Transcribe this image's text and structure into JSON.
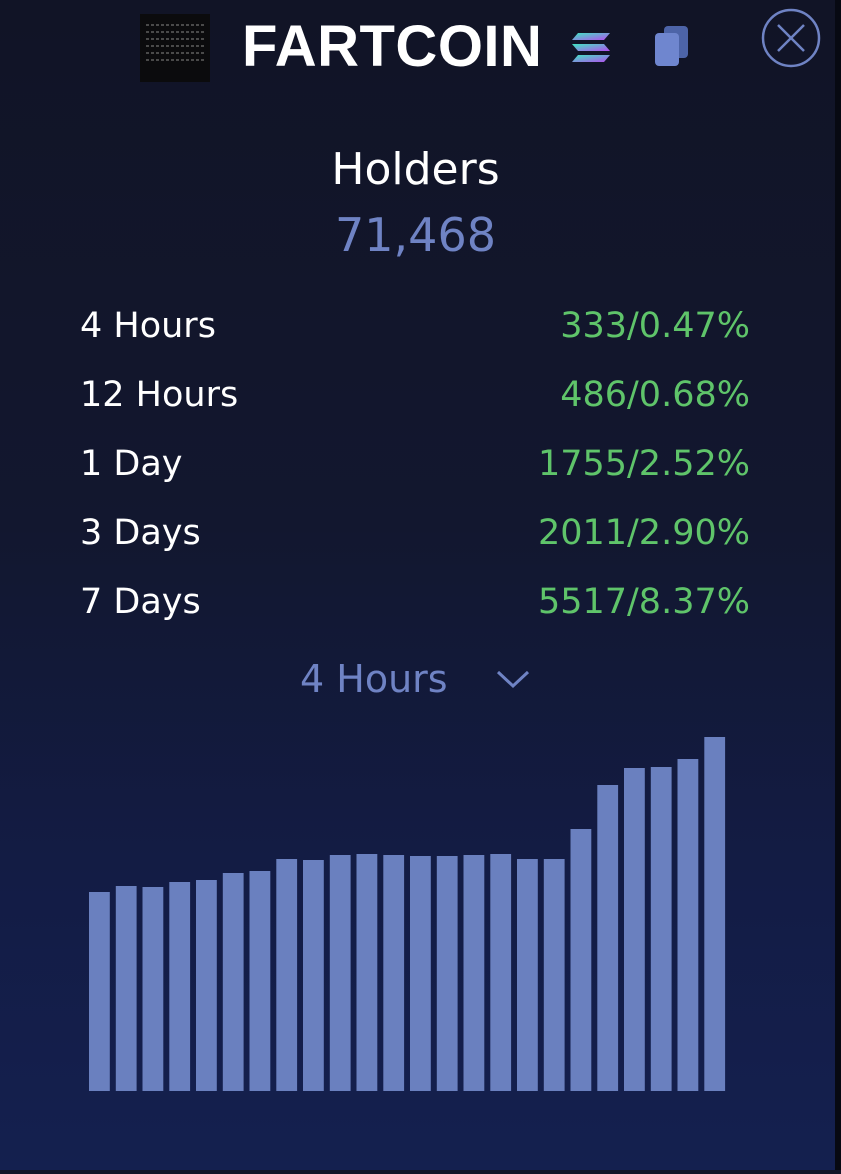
{
  "header": {
    "title": "FARTCOIN",
    "logo_icon": "fartcoin-logo",
    "chain_icon": "solana-icon",
    "copy_icon": "copy-icon",
    "close_icon": "close-icon"
  },
  "holders": {
    "label": "Holders",
    "value": "71,468"
  },
  "stats": [
    {
      "label": "4 Hours",
      "value": "333/0.47%"
    },
    {
      "label": "12 Hours",
      "value": "486/0.68%"
    },
    {
      "label": "1 Day",
      "value": "1755/2.52%"
    },
    {
      "label": "3 Days",
      "value": "2011/2.90%"
    },
    {
      "label": "7 Days",
      "value": "5517/8.37%"
    }
  ],
  "period_select": {
    "selected": "4 Hours"
  },
  "colors": {
    "accent": "#6f83c4",
    "positive": "#5fc46a",
    "bar": "#6a80bf",
    "text": "#ffffff"
  },
  "chart_data": {
    "type": "bar",
    "values": [
      199,
      205,
      204,
      209,
      211,
      218,
      220,
      232,
      231,
      236,
      237,
      236,
      235,
      235,
      236,
      237,
      232,
      232,
      262,
      306,
      323,
      324,
      332,
      354
    ],
    "ylim": [
      0,
      360
    ],
    "grid": false
  }
}
